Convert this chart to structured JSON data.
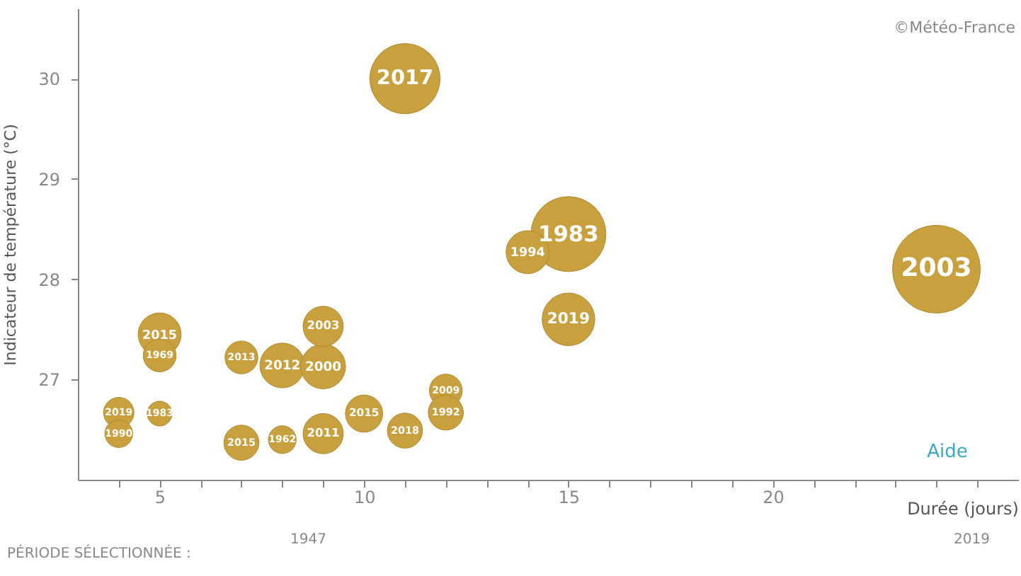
{
  "chart_data": {
    "type": "bubble",
    "xlabel": "Durée (jours)",
    "ylabel": "Indicateur de température (°C)",
    "x": [
      11,
      15,
      14,
      15,
      24,
      5,
      5,
      4,
      4,
      5,
      7,
      8,
      9,
      9,
      7,
      8,
      9,
      10,
      11,
      12,
      12
    ],
    "series": [
      {
        "color": "#c9a03e",
        "values": [
          30.0,
          28.45,
          28.27,
          27.6,
          28.1,
          27.45,
          27.24,
          26.67,
          26.46,
          26.66,
          27.22,
          27.14,
          27.13,
          27.53,
          26.37,
          26.4,
          26.46,
          26.66,
          26.49,
          26.89,
          26.67
        ],
        "sizes": [
          0.64,
          0.73,
          0.24,
          0.36,
          1,
          0.24,
          0.14,
          0.12,
          0.1,
          0.08,
          0.14,
          0.26,
          0.26,
          0.21,
          0.16,
          0.1,
          0.21,
          0.18,
          0.16,
          0.14,
          0.16
        ]
      }
    ],
    "annotations": [
      {
        "text": "2017",
        "x": 11,
        "y": 30.0
      },
      {
        "text": "1983",
        "x": 15,
        "y": 28.45
      },
      {
        "text": "1994",
        "x": 14,
        "y": 28.27
      },
      {
        "text": "2019",
        "x": 15,
        "y": 27.6
      },
      {
        "text": "2003",
        "x": 24,
        "y": 28.1
      },
      {
        "text": "2015",
        "x": 5,
        "y": 27.45
      },
      {
        "text": "1969",
        "x": 5,
        "y": 27.24
      },
      {
        "text": "2019",
        "x": 4,
        "y": 26.67
      },
      {
        "text": "1990",
        "x": 4,
        "y": 26.46
      },
      {
        "text": "1983",
        "x": 5,
        "y": 26.66
      },
      {
        "text": "2013",
        "x": 7,
        "y": 27.22
      },
      {
        "text": "2012",
        "x": 8,
        "y": 27.14
      },
      {
        "text": "2000",
        "x": 9,
        "y": 27.13
      },
      {
        "text": "2003",
        "x": 9,
        "y": 27.53
      },
      {
        "text": "2015",
        "x": 7,
        "y": 26.37
      },
      {
        "text": "1962",
        "x": 8,
        "y": 26.4
      },
      {
        "text": "2011",
        "x": 9,
        "y": 26.46
      },
      {
        "text": "2015",
        "x": 10,
        "y": 26.66
      },
      {
        "text": "2018",
        "x": 11,
        "y": 26.49
      },
      {
        "text": "2009",
        "x": 12,
        "y": 26.89
      },
      {
        "text": "1992",
        "x": 12,
        "y": 26.67
      },
      "©Météo-France",
      "Aide",
      "PÉRIODE SÉLECTIONNÉE :",
      "1947",
      "2019"
    ],
    "xlim": [
      3,
      26
    ],
    "xticks": [
      {
        "value": 4,
        "label": null
      },
      5,
      {
        "value": 6,
        "label": null
      },
      {
        "value": 7,
        "label": null
      },
      {
        "value": 8,
        "label": null
      },
      {
        "value": 9,
        "label": null
      },
      10,
      {
        "value": 11,
        "label": null
      },
      {
        "value": 12,
        "label": null
      },
      {
        "value": 13,
        "label": null
      },
      {
        "value": 14,
        "label": null
      },
      15,
      {
        "value": 16,
        "label": null
      },
      {
        "value": 17,
        "label": null
      },
      {
        "value": 18,
        "label": null
      },
      {
        "value": 19,
        "label": null
      },
      20,
      {
        "value": 21,
        "label": null
      },
      {
        "value": 22,
        "label": null
      },
      {
        "value": 23,
        "label": null
      },
      {
        "value": 24,
        "label": null
      },
      {
        "value": 25,
        "label": null
      }
    ],
    "ylim": [
      26.0,
      30.7
    ],
    "yticks": [
      27,
      28,
      29,
      30
    ],
    "grid": false
  }
}
